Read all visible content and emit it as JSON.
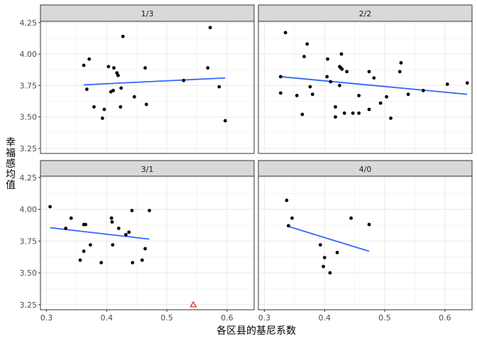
{
  "chart_data": {
    "type": "scatter",
    "xlabel": "各区县的基尼系数",
    "ylabel": "幸福感均值",
    "xlim": [
      0.29,
      0.645
    ],
    "ylim": [
      3.21,
      4.26
    ],
    "x_ticks_top": [
      0.3,
      0.4,
      0.5,
      0.6
    ],
    "x_ticks_bottom": [
      0.3,
      0.4,
      0.5,
      0.6
    ],
    "y_ticks": [
      3.25,
      3.5,
      3.75,
      4.0,
      4.25
    ],
    "grid": true,
    "colors": {
      "point": "#000000",
      "trend": "#3366ff",
      "outlier": "#cc0000",
      "strip": "#d9d9d9",
      "panel_border": "#333333",
      "grid": "#ebebeb"
    },
    "panels": [
      {
        "label": "1/3",
        "points": [
          [
            0.362,
            3.91
          ],
          [
            0.367,
            3.72
          ],
          [
            0.371,
            3.96
          ],
          [
            0.379,
            3.58
          ],
          [
            0.393,
            3.49
          ],
          [
            0.396,
            3.56
          ],
          [
            0.403,
            3.9
          ],
          [
            0.407,
            3.7
          ],
          [
            0.411,
            3.71
          ],
          [
            0.412,
            3.89
          ],
          [
            0.417,
            3.85
          ],
          [
            0.419,
            3.83
          ],
          [
            0.423,
            3.58
          ],
          [
            0.424,
            3.73
          ],
          [
            0.427,
            4.14
          ],
          [
            0.446,
            3.66
          ],
          [
            0.464,
            3.89
          ],
          [
            0.466,
            3.6
          ],
          [
            0.528,
            3.79
          ],
          [
            0.568,
            3.89
          ],
          [
            0.572,
            4.21
          ],
          [
            0.587,
            3.74
          ],
          [
            0.597,
            3.47
          ]
        ],
        "trend": [
          [
            0.362,
            3.755
          ],
          [
            0.597,
            3.81
          ]
        ]
      },
      {
        "label": "2/2",
        "points": [
          [
            0.327,
            3.82
          ],
          [
            0.327,
            3.69
          ],
          [
            0.335,
            4.17
          ],
          [
            0.354,
            3.67
          ],
          [
            0.363,
            3.52
          ],
          [
            0.366,
            3.98
          ],
          [
            0.371,
            4.08
          ],
          [
            0.376,
            3.74
          ],
          [
            0.38,
            3.68
          ],
          [
            0.404,
            3.82
          ],
          [
            0.405,
            3.96
          ],
          [
            0.41,
            3.78
          ],
          [
            0.418,
            3.5
          ],
          [
            0.418,
            3.58
          ],
          [
            0.425,
            3.75
          ],
          [
            0.425,
            3.9
          ],
          [
            0.427,
            3.89
          ],
          [
            0.428,
            4.0
          ],
          [
            0.429,
            3.88
          ],
          [
            0.433,
            3.53
          ],
          [
            0.437,
            3.86
          ],
          [
            0.447,
            3.53
          ],
          [
            0.457,
            3.67
          ],
          [
            0.457,
            3.53
          ],
          [
            0.474,
            3.86
          ],
          [
            0.474,
            3.56
          ],
          [
            0.482,
            3.81
          ],
          [
            0.493,
            3.61
          ],
          [
            0.503,
            3.66
          ],
          [
            0.51,
            3.49
          ],
          [
            0.525,
            3.86
          ],
          [
            0.527,
            3.93
          ],
          [
            0.539,
            3.68
          ],
          [
            0.564,
            3.71
          ],
          [
            0.604,
            3.76
          ],
          [
            0.637,
            3.77
          ]
        ],
        "trend": [
          [
            0.327,
            3.82
          ],
          [
            0.637,
            3.68
          ]
        ]
      },
      {
        "label": "3/1",
        "points": [
          [
            0.306,
            4.02
          ],
          [
            0.332,
            3.85
          ],
          [
            0.341,
            3.93
          ],
          [
            0.356,
            3.6
          ],
          [
            0.362,
            3.88
          ],
          [
            0.362,
            3.67
          ],
          [
            0.365,
            3.88
          ],
          [
            0.373,
            3.72
          ],
          [
            0.391,
            3.58
          ],
          [
            0.408,
            3.93
          ],
          [
            0.409,
            3.9
          ],
          [
            0.41,
            3.72
          ],
          [
            0.42,
            3.85
          ],
          [
            0.432,
            3.8
          ],
          [
            0.437,
            3.82
          ],
          [
            0.442,
            3.99
          ],
          [
            0.443,
            3.58
          ],
          [
            0.459,
            3.6
          ],
          [
            0.464,
            3.69
          ],
          [
            0.471,
            3.99
          ]
        ],
        "trend": [
          [
            0.306,
            3.855
          ],
          [
            0.471,
            3.765
          ]
        ],
        "outliers": [
          [
            0.544,
            3.25
          ]
        ]
      },
      {
        "label": "4/0",
        "points": [
          [
            0.337,
            4.07
          ],
          [
            0.34,
            3.87
          ],
          [
            0.346,
            3.93
          ],
          [
            0.393,
            3.72
          ],
          [
            0.398,
            3.55
          ],
          [
            0.4,
            3.62
          ],
          [
            0.409,
            3.5
          ],
          [
            0.421,
            3.66
          ],
          [
            0.444,
            3.93
          ],
          [
            0.474,
            3.88
          ]
        ],
        "trend": [
          [
            0.34,
            3.865
          ],
          [
            0.474,
            3.67
          ]
        ]
      }
    ]
  }
}
